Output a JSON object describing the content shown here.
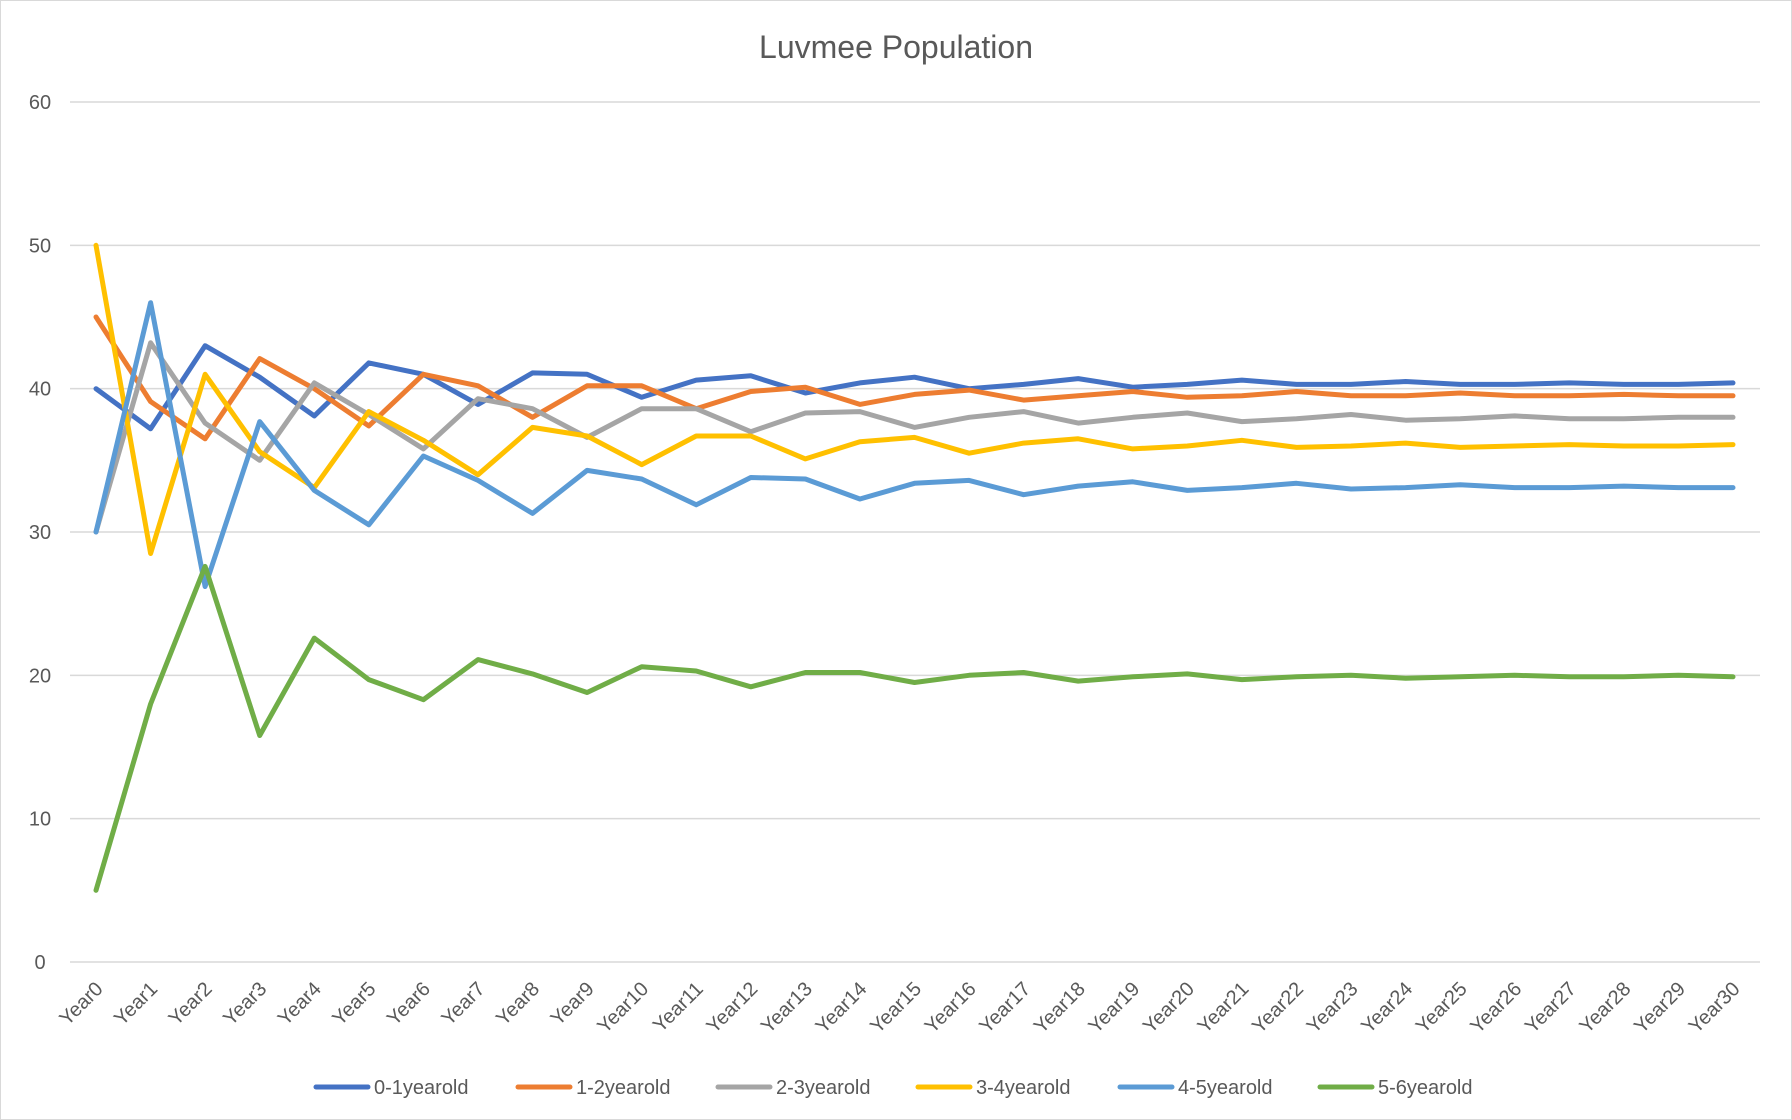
{
  "chart_data": {
    "type": "line",
    "title": "Luvmee Population",
    "xlabel": "",
    "ylabel": "",
    "ylim": [
      0,
      60
    ],
    "yticks": [
      0,
      10,
      20,
      30,
      40,
      50,
      60
    ],
    "grid": true,
    "legend_position": "bottom",
    "categories": [
      "Year0",
      "Year1",
      "Year2",
      "Year3",
      "Year4",
      "Year5",
      "Year6",
      "Year7",
      "Year8",
      "Year9",
      "Year10",
      "Year11",
      "Year12",
      "Year13",
      "Year14",
      "Year15",
      "Year16",
      "Year17",
      "Year18",
      "Year19",
      "Year20",
      "Year21",
      "Year22",
      "Year23",
      "Year24",
      "Year25",
      "Year26",
      "Year27",
      "Year28",
      "Year29",
      "Year30"
    ],
    "series": [
      {
        "name": "0-1yearold",
        "color": "#4472c4",
        "values": [
          40,
          37.2,
          43,
          40.8,
          38.1,
          41.8,
          41,
          38.9,
          41.1,
          41,
          39.4,
          40.6,
          40.9,
          39.7,
          40.4,
          40.8,
          40.0,
          40.3,
          40.7,
          40.1,
          40.3,
          40.6,
          40.3,
          40.3,
          40.5,
          40.3,
          40.3,
          40.4,
          40.3,
          40.3,
          40.4
        ]
      },
      {
        "name": "1-2yearold",
        "color": "#ed7d31",
        "values": [
          45,
          39.1,
          36.5,
          42.1,
          40.0,
          37.4,
          41,
          40.2,
          38,
          40.2,
          40.2,
          38.6,
          39.8,
          40.1,
          38.9,
          39.6,
          39.9,
          39.2,
          39.5,
          39.8,
          39.4,
          39.5,
          39.8,
          39.5,
          39.5,
          39.7,
          39.5,
          39.5,
          39.6,
          39.5,
          39.5
        ]
      },
      {
        "name": "2-3yearold",
        "color": "#a5a5a5",
        "values": [
          30,
          43.2,
          37.6,
          35.0,
          40.4,
          38.2,
          35.8,
          39.3,
          38.6,
          36.6,
          38.6,
          38.6,
          37.0,
          38.3,
          38.4,
          37.3,
          38.0,
          38.4,
          37.6,
          38.0,
          38.3,
          37.7,
          37.9,
          38.2,
          37.8,
          37.9,
          38.1,
          37.9,
          37.9,
          38.0,
          38.0
        ]
      },
      {
        "name": "3-4yearold",
        "color": "#ffc000",
        "values": [
          50,
          28.5,
          41,
          35.6,
          33.1,
          38.4,
          36.4,
          34.0,
          37.3,
          36.7,
          34.7,
          36.7,
          36.7,
          35.1,
          36.3,
          36.6,
          35.5,
          36.2,
          36.5,
          35.8,
          36.0,
          36.4,
          35.9,
          36.0,
          36.2,
          35.9,
          36.0,
          36.1,
          36.0,
          36.0,
          36.1
        ]
      },
      {
        "name": "4-5yearold",
        "color": "#5b9bd5",
        "values": [
          30,
          46,
          26.2,
          37.7,
          32.9,
          30.5,
          35.3,
          33.6,
          31.3,
          34.3,
          33.7,
          31.9,
          33.8,
          33.7,
          32.3,
          33.4,
          33.6,
          32.6,
          33.2,
          33.5,
          32.9,
          33.1,
          33.4,
          33.0,
          33.1,
          33.3,
          33.1,
          33.1,
          33.2,
          33.1,
          33.1
        ]
      },
      {
        "name": "5-6yearold",
        "color": "#70ad47",
        "values": [
          5,
          18,
          27.6,
          15.8,
          22.6,
          19.7,
          18.3,
          21.1,
          20.1,
          18.8,
          20.6,
          20.3,
          19.2,
          20.2,
          20.2,
          19.5,
          20.0,
          20.2,
          19.6,
          19.9,
          20.1,
          19.7,
          19.9,
          20.0,
          19.8,
          19.9,
          20.0,
          19.9,
          19.9,
          20.0,
          19.9
        ]
      }
    ]
  }
}
